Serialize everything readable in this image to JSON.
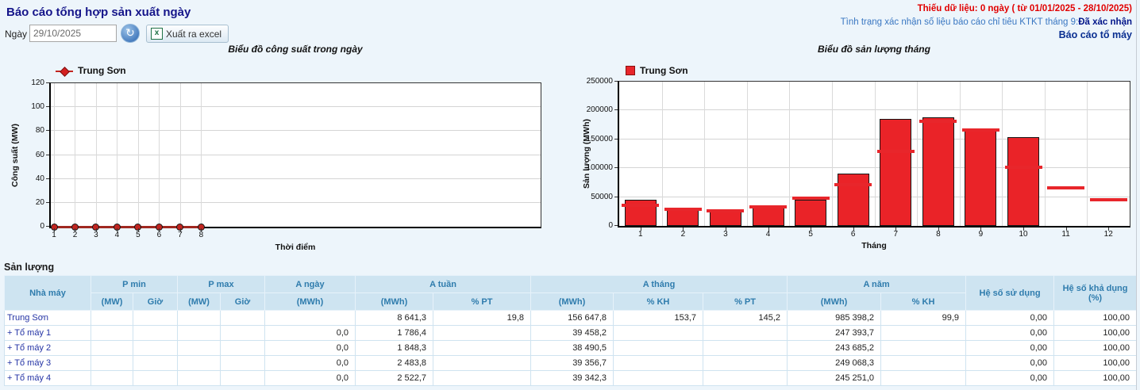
{
  "page": {
    "title": "Báo cáo tổng hợp sản xuất ngày",
    "missing_data_notice": "Thiếu dữ liệu: 0 ngày ( từ 01/01/2025 - 28/10/2025)",
    "confirm_status_label": "Tình trạng xác nhận số liệu báo cáo chỉ tiêu KTKT tháng 9:",
    "confirm_status_value": "Đã xác nhận",
    "unit_report_link": "Báo cáo tổ máy",
    "date_label": "Ngày",
    "date_value": "29/10/2025",
    "export_button": "Xuất ra excel",
    "excel_icon_glyph": "x",
    "refresh_icon_glyph": "↻"
  },
  "colors": {
    "title_navy": "#15158a",
    "alert_red": "#e10000",
    "info_blue": "#3a77c2",
    "status_navy": "#001489",
    "bar_red": "#ea2328",
    "plan_red": "#e8262b",
    "line_dark_red": "#a02820",
    "header_bg": "#cee4f1",
    "header_text": "#2f7cad",
    "row_link_blue": "#2433a5"
  },
  "chart_data": [
    {
      "type": "line",
      "title": "Biểu đồ công suất trong ngày",
      "xlabel": "Thời điểm",
      "ylabel": "Công suất (MW)",
      "ylim": [
        0,
        120
      ],
      "yticks": [
        "0",
        "20",
        "40",
        "60",
        "80",
        "100",
        "120"
      ],
      "xticks": [
        "1",
        "2",
        "3",
        "4",
        "5",
        "6",
        "7",
        "8"
      ],
      "x_slots_total": 24,
      "grid": true,
      "legend_position": "top-left",
      "series": [
        {
          "name": "Trung Sơn",
          "x": [
            1,
            2,
            3,
            4,
            5,
            6,
            7,
            8
          ],
          "values": [
            0,
            0,
            0,
            0,
            0,
            0,
            0,
            0
          ]
        }
      ]
    },
    {
      "type": "bar",
      "title": "Biểu đồ sản lượng tháng",
      "xlabel": "Tháng",
      "ylabel": "Sản lượng (MWh)",
      "ylim": [
        0,
        250000
      ],
      "yticks": [
        "0",
        "50000",
        "100000",
        "150000",
        "200000",
        "250000"
      ],
      "categories": [
        "1",
        "2",
        "3",
        "4",
        "5",
        "6",
        "7",
        "8",
        "9",
        "10",
        "11",
        "12"
      ],
      "grid": true,
      "legend_position": "top-left",
      "series": [
        {
          "name": "Trung Sơn",
          "values": [
            45000,
            31500,
            27500,
            35000,
            45500,
            90000,
            185000,
            188000,
            169000,
            154000,
            null,
            null
          ]
        }
      ],
      "plan_markers": [
        35500,
        28500,
        25500,
        33000,
        47500,
        71500,
        128500,
        181000,
        166000,
        101500,
        65500,
        45500
      ]
    }
  ],
  "table": {
    "section_title": "Sản lượng",
    "h1": [
      "Nhà máy",
      "P min",
      "P max",
      "A ngày",
      "A tuần",
      "A tháng",
      "A năm",
      "Hệ số sử dụng",
      "Hệ số khả dụng (%)"
    ],
    "h2": [
      "(MW)",
      "Giờ",
      "(MW)",
      "Giờ",
      "(MWh)",
      "(MWh)",
      "% PT",
      "(MWh)",
      "% KH",
      "% PT",
      "(MWh)",
      "% KH"
    ],
    "rows": [
      [
        "Trung Sơn",
        "",
        "",
        "",
        "",
        "",
        "8 641,3",
        "19,8",
        "156 647,8",
        "153,7",
        "145,2",
        "985 398,2",
        "99,9",
        "0,00",
        "100,00"
      ],
      [
        "+ Tổ máy 1",
        "",
        "",
        "",
        "",
        "0,0",
        "1 786,4",
        "",
        "39 458,2",
        "",
        "",
        "247 393,7",
        "",
        "0,00",
        "100,00"
      ],
      [
        "+ Tổ máy 2",
        "",
        "",
        "",
        "",
        "0,0",
        "1 848,3",
        "",
        "38 490,5",
        "",
        "",
        "243 685,2",
        "",
        "0,00",
        "100,00"
      ],
      [
        "+ Tổ máy 3",
        "",
        "",
        "",
        "",
        "0,0",
        "2 483,8",
        "",
        "39 356,7",
        "",
        "",
        "249 068,3",
        "",
        "0,00",
        "100,00"
      ],
      [
        "+ Tổ máy 4",
        "",
        "",
        "",
        "",
        "0,0",
        "2 522,7",
        "",
        "39 342,3",
        "",
        "",
        "245 251,0",
        "",
        "0,00",
        "100,00"
      ]
    ]
  }
}
